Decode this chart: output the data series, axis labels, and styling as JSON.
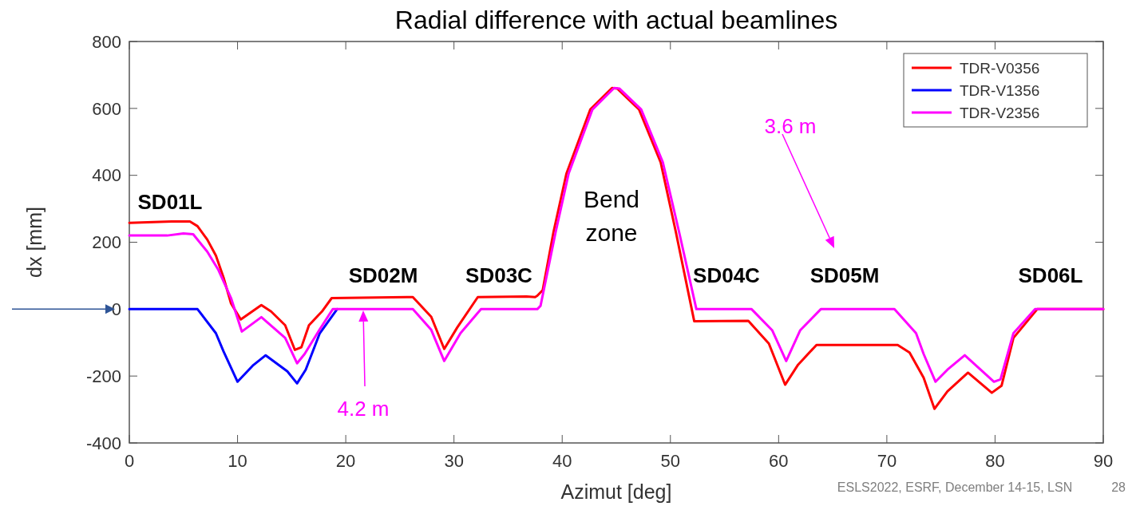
{
  "chart_data": {
    "type": "line",
    "title": "Radial difference with actual beamlines",
    "xlabel": "Azimut [deg]",
    "ylabel": "dx [mm]",
    "xlim": [
      0,
      90
    ],
    "xticks": [
      0,
      10,
      20,
      30,
      40,
      50,
      60,
      70,
      80,
      90
    ],
    "ylim": [
      -400,
      800
    ],
    "yticks": [
      -400,
      -200,
      0,
      200,
      400,
      600,
      800
    ],
    "grid": false,
    "legend": "top right",
    "line_style": "solid",
    "marker": "none",
    "series": [
      {
        "name": "TDR-V0356",
        "color": "#ff0000",
        "x": [
          0,
          3.9,
          5.6,
          6.3,
          7.2,
          8.0,
          8.7,
          9.4,
          10.3,
          12.2,
          13.1,
          14.4,
          15.3,
          15.9,
          16.6,
          17.8,
          18.7,
          26.2,
          27.9,
          29.1,
          30.3,
          32.2,
          36.7,
          37.5,
          37.7,
          38.2,
          39.2,
          40.4,
          42.6,
          44.6,
          45.1,
          47.1,
          49.1,
          50.5,
          52.2,
          57.2,
          59.1,
          60.6,
          61.8,
          63.5,
          71.0,
          72.1,
          73.4,
          74.4,
          75.6,
          77.5,
          79.7,
          80.6,
          81.7,
          83.9,
          90
        ],
        "values": [
          258,
          262,
          262,
          248,
          208,
          160,
          95,
          17,
          -31,
          12,
          -7,
          -48,
          -122,
          -114,
          -48,
          -7,
          33,
          36,
          -23,
          -119,
          -55,
          36,
          38,
          36,
          40,
          57,
          231,
          406,
          597,
          661,
          659,
          597,
          439,
          231,
          -36,
          -35,
          -103,
          -226,
          -166,
          -107,
          -107,
          -130,
          -205,
          -298,
          -246,
          -190,
          -250,
          -229,
          -86,
          0,
          0
        ]
      },
      {
        "name": "TDR-V1356",
        "color": "#0000ff",
        "x": [
          0,
          6.3,
          8.0,
          8.7,
          10.0,
          11.4,
          12.6,
          14.6,
          15.5,
          16.3,
          17.6,
          19.2
        ],
        "values": [
          0,
          0,
          -72,
          -126,
          -217,
          -169,
          -138,
          -186,
          -222,
          -181,
          -72,
          0
        ]
      },
      {
        "name": "TDR-V2356",
        "color": "#ff00ff",
        "x": [
          0,
          3.5,
          5.0,
          5.9,
          7.2,
          8.2,
          9.4,
          10.4,
          12.2,
          14.4,
          15.5,
          16.2,
          17.6,
          18.8,
          26.2,
          27.9,
          29.1,
          30.6,
          32.5,
          37.7,
          38.0,
          39.4,
          40.6,
          42.8,
          44.8,
          45.3,
          47.3,
          49.3,
          50.8,
          52.4,
          57.5,
          59.4,
          60.7,
          62.0,
          63.9,
          70.7,
          72.7,
          73.4,
          74.5,
          75.6,
          77.2,
          79.9,
          80.5,
          81.7,
          83.7,
          90
        ],
        "values": [
          220,
          220,
          226,
          224,
          172,
          119,
          33,
          -67,
          -24,
          -86,
          -162,
          -134,
          -60,
          0,
          0,
          -62,
          -155,
          -72,
          0,
          0,
          10,
          231,
          406,
          597,
          661,
          659,
          597,
          439,
          231,
          0,
          0,
          -63,
          -155,
          -63,
          0,
          0,
          -72,
          -134,
          -217,
          -181,
          -138,
          -217,
          -210,
          -72,
          0,
          0
        ]
      }
    ],
    "annotations": [
      "SD01L",
      "SD02M",
      "SD03C",
      "Bend zone",
      "SD04C",
      "SD05M",
      "SD06L",
      "4.2 m",
      "3.6 m",
      "ESLS2022, ESRF, December 14-15, LSN",
      "28"
    ]
  }
}
